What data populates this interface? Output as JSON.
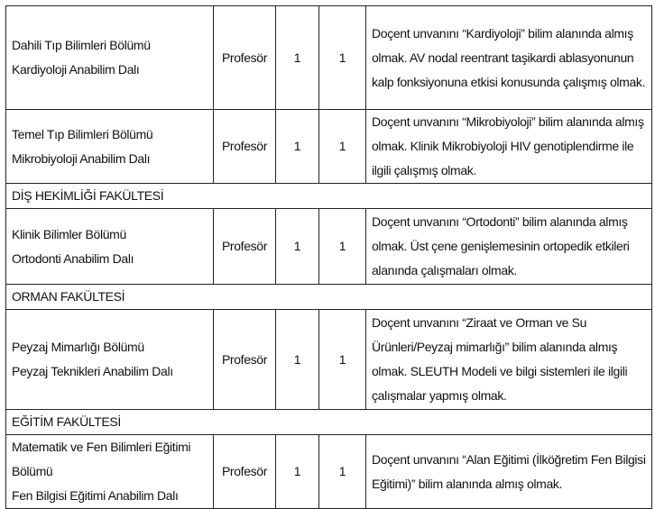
{
  "rows": [
    {
      "type": "position",
      "unit_lines": [
        "Dahili Tıp Bilimleri Bölümü",
        "Kardiyoloji Anabilim Dalı"
      ],
      "title": "Profesör",
      "count": "1",
      "degree": "1",
      "requirement": "Doçent unvanını “Kardiyoloji” bilim alanında almış olmak. AV nodal reentrant taşikardi ablasyonunun kalp fonksiyonuna etkisi konusunda çalışmış olmak."
    },
    {
      "type": "position",
      "unit_lines": [
        "Temel Tıp Bilimleri Bölümü",
        "Mikrobiyoloji Anabilim Dalı"
      ],
      "title": "Profesör",
      "count": "1",
      "degree": "1",
      "requirement": "Doçent unvanını “Mikrobiyoloji” bilim alanında almış olmak. Klinik Mikrobiyoloji HIV genotiplendirme ile ilgili çalışmış olmak."
    },
    {
      "type": "section",
      "label": "DİŞ HEKİMLİĞİ FAKÜLTESİ"
    },
    {
      "type": "position",
      "unit_lines": [
        "Klinik Bilimler Bölümü",
        "Ortodonti Anabilim Dalı"
      ],
      "title": "Profesör",
      "count": "1",
      "degree": "1",
      "requirement": "Doçent unvanını “Ortodonti” bilim alanında almış olmak. Üst çene genişlemesinin ortopedik etkileri alanında çalışmaları olmak."
    },
    {
      "type": "section",
      "label": "ORMAN FAKÜLTESİ"
    },
    {
      "type": "position",
      "unit_lines": [
        "Peyzaj Mimarlığı Bölümü",
        "Peyzaj Teknikleri Anabilim Dalı"
      ],
      "title": "Profesör",
      "count": "1",
      "degree": "1",
      "requirement": "Doçent unvanını “Ziraat ve Orman ve Su Ürünleri/Peyzaj mimarlığı” bilim alanında almış olmak. SLEUTH Modeli ve bilgi sistemleri ile ilgili çalışmalar yapmış olmak."
    },
    {
      "type": "section",
      "label": "EĞİTİM FAKÜLTESİ"
    },
    {
      "type": "position",
      "unit_lines": [
        "Matematik ve Fen Bilimleri Eğitimi",
        "Bölümü",
        "Fen Bilgisi Eğitimi Anabilim Dalı"
      ],
      "title": "Profesör",
      "count": "1",
      "degree": "1",
      "requirement": "Doçent unvanını “Alan Eğitimi (İlköğretim Fen Bilgisi Eğitimi)” bilim alanında almış olmak."
    }
  ]
}
